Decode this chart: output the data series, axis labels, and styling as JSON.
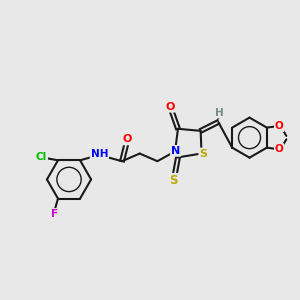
{
  "background_color": "#e8e8e8",
  "bond_color": "#1a1a1a",
  "atom_colors": {
    "N": "#0000ff",
    "O": "#ff0000",
    "S": "#bbaa00",
    "Cl": "#00bb00",
    "F": "#cc00cc",
    "H": "#778888",
    "C": "#1a1a1a"
  },
  "figsize": [
    3.0,
    3.0
  ],
  "dpi": 100
}
